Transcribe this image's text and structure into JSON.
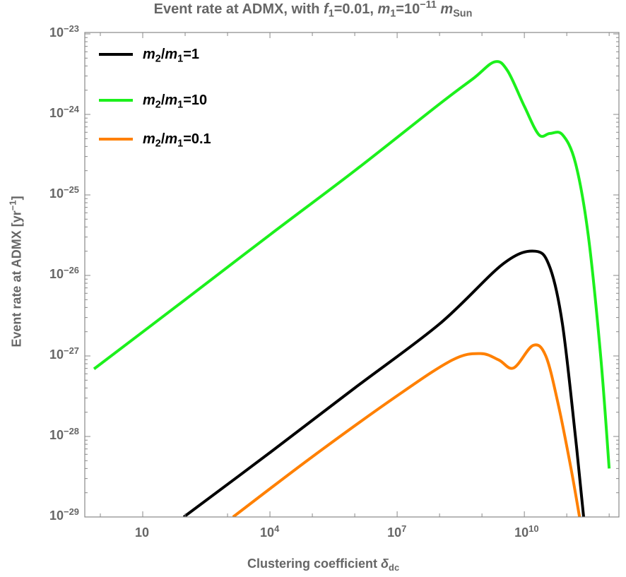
{
  "chart_data": {
    "type": "line",
    "title": {
      "pre": "Event rate at ADMX, with ",
      "f": "f",
      "f_sub": "1",
      "f_val": "=0.01, ",
      "m": "m",
      "m_sub": "1",
      "m_val": "=10",
      "m_exp": "−11",
      "unit": "m",
      "unit_sub": "Sun"
    },
    "xlabel": {
      "text": "Clustering coefficient ",
      "sym": "δ",
      "sub": "dc"
    },
    "ylabel": {
      "text": "Event rate at ADMX [yr",
      "exp": "−1",
      "close": "]"
    },
    "xscale": "log",
    "yscale": "log",
    "xlim": [
      0.43,
      1700000000000.0
    ],
    "ylim": [
      1e-29,
      1e-23
    ],
    "grid": false,
    "legend_position": "top-left",
    "x_ticks": [
      {
        "value": 10,
        "base": "10",
        "exp": ""
      },
      {
        "value": 10000.0,
        "base": "10",
        "exp": "4"
      },
      {
        "value": 10000000.0,
        "base": "10",
        "exp": "7"
      },
      {
        "value": 10000000000.0,
        "base": "10",
        "exp": "10"
      }
    ],
    "y_ticks": [
      {
        "value": 1e-23,
        "base": "10",
        "exp": "−23"
      },
      {
        "value": 1e-24,
        "base": "10",
        "exp": "−24"
      },
      {
        "value": 1e-25,
        "base": "10",
        "exp": "−25"
      },
      {
        "value": 1e-26,
        "base": "10",
        "exp": "−26"
      },
      {
        "value": 1e-27,
        "base": "10",
        "exp": "−27"
      },
      {
        "value": 1e-28,
        "base": "10",
        "exp": "−28"
      },
      {
        "value": 1e-29,
        "base": "10",
        "exp": "−29"
      }
    ],
    "series": [
      {
        "name": {
          "a": "m",
          "a_sub": "2",
          "b": "m",
          "b_sub": "1",
          "val": "=1"
        },
        "color": "#000000",
        "x": [
          93,
          10000.0,
          1000000.0,
          100000000.0,
          3200000000.0,
          18000000000.0,
          40000000000.0,
          79000000000.0,
          160000000000.0,
          250000000000.0
        ],
        "y": [
          1e-29,
          6.3e-29,
          4e-28,
          2.5e-27,
          1.4e-26,
          2e-26,
          1.26e-26,
          2.5e-27,
          1e-28,
          1e-29
        ]
      },
      {
        "name": {
          "a": "m",
          "a_sub": "2",
          "b": "m",
          "b_sub": "1",
          "val": "=10"
        },
        "color": "#1cf01c",
        "x": [
          0.71,
          100.0,
          10000.0,
          1000000.0,
          100000000.0,
          630000000.0,
          2000000000.0,
          4000000000.0,
          10000000000.0,
          22000000000.0,
          40000000000.0,
          79000000000.0,
          160000000000.0,
          320000000000.0,
          630000000000.0,
          1000000000000.0
        ],
        "y": [
          6.9e-28,
          5e-27,
          3.2e-26,
          2e-25,
          1.35e-24,
          2.8e-24,
          4.5e-24,
          3.5e-24,
          1.26e-24,
          5.6e-25,
          5.8e-25,
          5.6e-25,
          2.5e-25,
          3.2e-26,
          1e-27,
          4e-29
        ]
      },
      {
        "name": {
          "a": "m",
          "a_sub": "2",
          "b": "m",
          "b_sub": "1",
          "val": "=0.1"
        },
        "color": "#ff8000",
        "x": [
          1350,
          100000.0,
          10000000.0,
          200000000.0,
          930000000.0,
          2500000000.0,
          5600000000.0,
          16000000000.0,
          32000000000.0,
          63000000000.0,
          126000000000.0,
          200000000000.0
        ],
        "y": [
          1e-29,
          5.6e-29,
          3.2e-28,
          8.9e-28,
          1.07e-27,
          8.9e-28,
          7.1e-28,
          1.35e-27,
          1e-27,
          2.5e-28,
          4e-29,
          1e-29
        ]
      }
    ]
  }
}
